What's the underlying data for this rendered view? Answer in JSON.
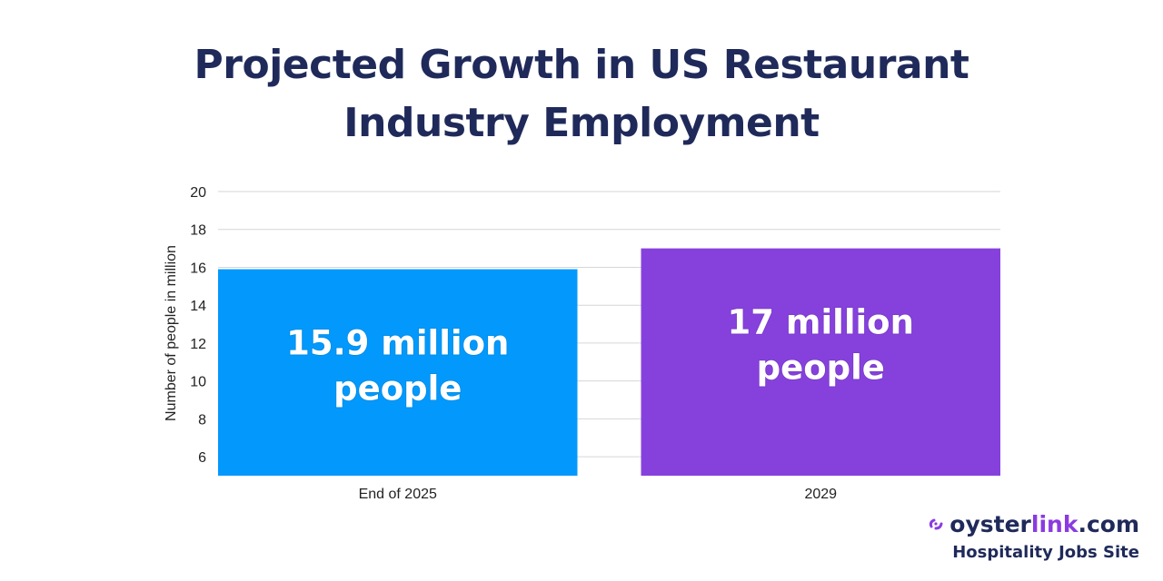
{
  "chart_data": {
    "type": "bar",
    "title": [
      "Projected Growth in US Restaurant",
      "Industry Employment"
    ],
    "categories": [
      "End of 2025",
      "2029"
    ],
    "values": [
      15.9,
      17
    ],
    "bar_labels": [
      [
        "15.9 million",
        "people"
      ],
      [
        "17 million",
        "people"
      ]
    ],
    "bar_colors": [
      "#0399fc",
      "#8641dd"
    ],
    "xlabel": "",
    "ylabel": "Number of people in million",
    "ylim": [
      5,
      20
    ],
    "yticks": [
      6,
      8,
      10,
      12,
      14,
      16,
      18,
      20
    ],
    "grid": true
  },
  "brand": {
    "name_part1": "oyster",
    "name_part2": "link",
    "name_part3": ".com",
    "tagline": "Hospitality Jobs Site",
    "icon": "oysterlink-logo-icon",
    "colors": {
      "navy": "#1f2a5a",
      "purple": "#8a3be0"
    }
  }
}
